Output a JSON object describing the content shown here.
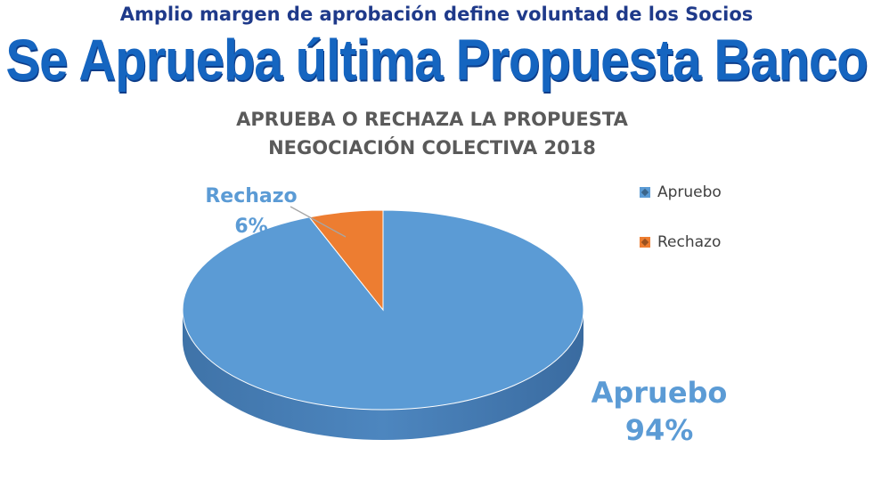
{
  "header": {
    "subtitle": "Amplio margen de aprobación define voluntad de los Socios",
    "headline": "Se Aprueba última Propuesta Banco"
  },
  "chart_data": {
    "type": "pie",
    "title_lines": [
      "APRUEBA O RECHAZA LA PROPUESTA",
      "NEGOCIACIÓN COLECTIVA 2018"
    ],
    "slices": [
      {
        "label": "Apruebo",
        "value": 94,
        "value_label": "94%",
        "color": "#5b9bd5"
      },
      {
        "label": "Rechazo",
        "value": 6,
        "value_label": "6%",
        "color": "#ed7d31"
      }
    ],
    "legend": {
      "position": "top-right",
      "items": [
        "Apruebo",
        "Rechazo"
      ]
    },
    "style": "3d-pie"
  }
}
